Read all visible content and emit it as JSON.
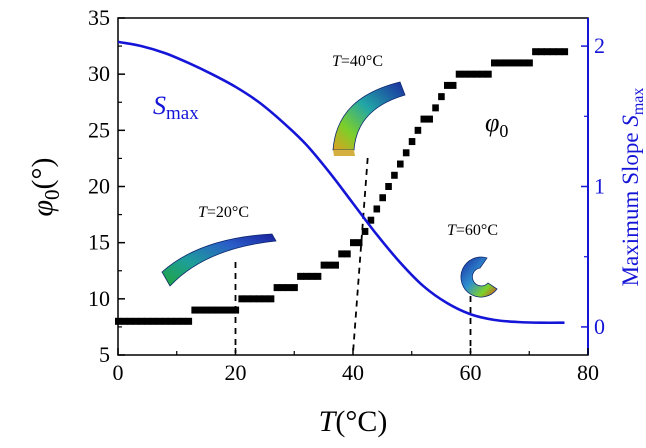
{
  "chart_data": {
    "type": "line",
    "x_axis": {
      "label_var": "T",
      "label_unit": "(°C)",
      "range": [
        0,
        80
      ],
      "ticks": [
        0,
        20,
        40,
        60,
        80
      ]
    },
    "y_axis_left": {
      "label_var": "φ",
      "label_sub": "0",
      "label_unit": "(°)",
      "range": [
        5,
        35
      ],
      "ticks": [
        5,
        10,
        15,
        20,
        25,
        30,
        35
      ]
    },
    "y_axis_right": {
      "label_text": "Maximum Slope ",
      "label_var": "S",
      "label_sub": "max",
      "range": [
        -0.2,
        2.2
      ],
      "ticks": [
        0,
        1,
        2
      ],
      "color": "#1515d8"
    },
    "series": [
      {
        "label_var": "φ",
        "label_sub": "0",
        "axis": "left",
        "style": "step-squares",
        "color": "#000000",
        "points": [
          {
            "x": 0,
            "y": 8
          },
          {
            "x": 1,
            "y": 8
          },
          {
            "x": 2,
            "y": 8
          },
          {
            "x": 3,
            "y": 8
          },
          {
            "x": 4,
            "y": 8
          },
          {
            "x": 5,
            "y": 8
          },
          {
            "x": 6,
            "y": 8
          },
          {
            "x": 7,
            "y": 8
          },
          {
            "x": 8,
            "y": 8
          },
          {
            "x": 9,
            "y": 8
          },
          {
            "x": 10,
            "y": 8
          },
          {
            "x": 11,
            "y": 8
          },
          {
            "x": 12,
            "y": 8
          },
          {
            "x": 13,
            "y": 9
          },
          {
            "x": 14,
            "y": 9
          },
          {
            "x": 15,
            "y": 9
          },
          {
            "x": 16,
            "y": 9
          },
          {
            "x": 17,
            "y": 9
          },
          {
            "x": 18,
            "y": 9
          },
          {
            "x": 19,
            "y": 9
          },
          {
            "x": 20,
            "y": 9
          },
          {
            "x": 21,
            "y": 10
          },
          {
            "x": 22,
            "y": 10
          },
          {
            "x": 23,
            "y": 10
          },
          {
            "x": 24,
            "y": 10
          },
          {
            "x": 25,
            "y": 10
          },
          {
            "x": 26,
            "y": 10
          },
          {
            "x": 27,
            "y": 11
          },
          {
            "x": 28,
            "y": 11
          },
          {
            "x": 29,
            "y": 11
          },
          {
            "x": 30,
            "y": 11
          },
          {
            "x": 31,
            "y": 12
          },
          {
            "x": 32,
            "y": 12
          },
          {
            "x": 33,
            "y": 12
          },
          {
            "x": 34,
            "y": 12
          },
          {
            "x": 35,
            "y": 13
          },
          {
            "x": 36,
            "y": 13
          },
          {
            "x": 37,
            "y": 13
          },
          {
            "x": 38,
            "y": 14
          },
          {
            "x": 39,
            "y": 14
          },
          {
            "x": 40,
            "y": 15
          },
          {
            "x": 41,
            "y": 15
          },
          {
            "x": 42,
            "y": 16
          },
          {
            "x": 43,
            "y": 17
          },
          {
            "x": 44,
            "y": 18
          },
          {
            "x": 45,
            "y": 19
          },
          {
            "x": 46,
            "y": 20
          },
          {
            "x": 47,
            "y": 21
          },
          {
            "x": 48,
            "y": 22
          },
          {
            "x": 49,
            "y": 23
          },
          {
            "x": 50,
            "y": 24
          },
          {
            "x": 51,
            "y": 25
          },
          {
            "x": 52,
            "y": 26
          },
          {
            "x": 53,
            "y": 26
          },
          {
            "x": 54,
            "y": 27
          },
          {
            "x": 55,
            "y": 28
          },
          {
            "x": 56,
            "y": 29
          },
          {
            "x": 57,
            "y": 29
          },
          {
            "x": 58,
            "y": 30
          },
          {
            "x": 59,
            "y": 30
          },
          {
            "x": 60,
            "y": 30
          },
          {
            "x": 61,
            "y": 30
          },
          {
            "x": 62,
            "y": 30
          },
          {
            "x": 63,
            "y": 30
          },
          {
            "x": 64,
            "y": 31
          },
          {
            "x": 65,
            "y": 31
          },
          {
            "x": 66,
            "y": 31
          },
          {
            "x": 67,
            "y": 31
          },
          {
            "x": 68,
            "y": 31
          },
          {
            "x": 69,
            "y": 31
          },
          {
            "x": 70,
            "y": 31
          },
          {
            "x": 71,
            "y": 32
          },
          {
            "x": 72,
            "y": 32
          },
          {
            "x": 73,
            "y": 32
          },
          {
            "x": 74,
            "y": 32
          },
          {
            "x": 75,
            "y": 32
          },
          {
            "x": 76,
            "y": 32
          }
        ]
      },
      {
        "label_var": "S",
        "label_sub": "max",
        "axis": "right",
        "style": "line",
        "color": "#1515d8",
        "points": [
          {
            "x": 0,
            "y": 2.03
          },
          {
            "x": 4,
            "y": 2.0
          },
          {
            "x": 8,
            "y": 1.95
          },
          {
            "x": 12,
            "y": 1.88
          },
          {
            "x": 16,
            "y": 1.8
          },
          {
            "x": 20,
            "y": 1.71
          },
          {
            "x": 24,
            "y": 1.6
          },
          {
            "x": 28,
            "y": 1.46
          },
          {
            "x": 32,
            "y": 1.3
          },
          {
            "x": 36,
            "y": 1.1
          },
          {
            "x": 40,
            "y": 0.88
          },
          {
            "x": 44,
            "y": 0.66
          },
          {
            "x": 48,
            "y": 0.46
          },
          {
            "x": 52,
            "y": 0.29
          },
          {
            "x": 56,
            "y": 0.17
          },
          {
            "x": 60,
            "y": 0.09
          },
          {
            "x": 64,
            "y": 0.05
          },
          {
            "x": 68,
            "y": 0.035
          },
          {
            "x": 72,
            "y": 0.03
          },
          {
            "x": 76,
            "y": 0.03
          }
        ]
      }
    ],
    "annotations": [
      {
        "var": "T",
        "text": "=20°C",
        "x": 20,
        "y": 9
      },
      {
        "var": "T",
        "text": "=40°C",
        "x": 40,
        "y": 5
      },
      {
        "var": "T",
        "text": "=60°C",
        "x": 60,
        "y": 5
      }
    ]
  }
}
